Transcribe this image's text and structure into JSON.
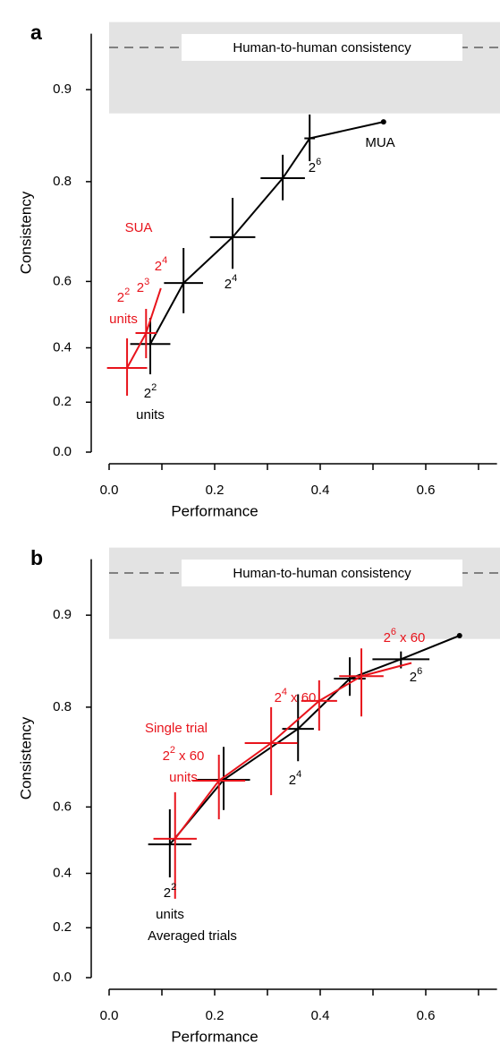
{
  "chart_data": [
    {
      "type": "errorbar",
      "panel": "a",
      "xlabel": "Performance",
      "ylabel": "Consistency",
      "yscale": "atanh",
      "xlim": [
        0,
        0.735
      ],
      "ylim": [
        0,
        0.941
      ],
      "xticks": [
        {
          "value": 0,
          "label": "0.0"
        },
        0.2,
        0.4,
        0.6
      ],
      "yticks": [
        {
          "value": 0,
          "label": "0.0"
        },
        0.2,
        0.4,
        0.6,
        0.8,
        0.9
      ],
      "reference": {
        "label": "Human-to-human consistency",
        "value": 0.928,
        "band": [
          0.88,
          0.941
        ]
      },
      "series": [
        {
          "color": "#000000",
          "end_marker": true,
          "x": [
            0.078,
            0.141,
            0.234,
            0.329,
            0.38,
            0.52
          ],
          "y": [
            0.413,
            0.596,
            0.703,
            0.805,
            0.855,
            0.872
          ],
          "xerr": [
            0.038,
            0.037,
            0.043,
            0.042,
            0.01,
            null
          ],
          "ylow": [
            0.306,
            0.511,
            0.632,
            0.771,
            0.828,
            null
          ],
          "yhigh": [
            0.497,
            0.68,
            0.775,
            0.836,
            0.879,
            null
          ]
        },
        {
          "color": "#e8141c",
          "end_marker": false,
          "x": [
            0.034,
            0.07,
            0.098
          ],
          "y": [
            0.329,
            0.449,
            0.582
          ],
          "xerr": [
            0.038,
            0.02,
            null
          ],
          "ylow": [
            0.225,
            0.364,
            null
          ],
          "yhigh": [
            0.432,
            0.524,
            null
          ]
        }
      ],
      "annotations": [
        {
          "color": "#000000",
          "base": "2",
          "sup": "2",
          "line2": "units"
        },
        {
          "color": "#000000",
          "base": "2",
          "sup": "4"
        },
        {
          "color": "#000000",
          "base": "2",
          "sup": "6"
        },
        {
          "color": "#000000",
          "base": "MUA"
        },
        {
          "color": "#e8141c",
          "base": "SUA"
        },
        {
          "color": "#e8141c",
          "base": "2",
          "sup": "2",
          "line2": "units"
        },
        {
          "color": "#e8141c",
          "base": "2",
          "sup": "3"
        },
        {
          "color": "#e8141c",
          "base": "2",
          "sup": "4"
        }
      ]
    },
    {
      "type": "errorbar",
      "panel": "b",
      "xlabel": "Performance",
      "ylabel": "Consistency",
      "yscale": "atanh",
      "xlim": [
        0,
        0.735
      ],
      "ylim": [
        0,
        0.941
      ],
      "xticks": [
        {
          "value": 0,
          "label": "0.0"
        },
        0.2,
        0.4,
        0.6
      ],
      "yticks": [
        {
          "value": 0,
          "label": "0.0"
        },
        0.2,
        0.4,
        0.6,
        0.8,
        0.9
      ],
      "reference": {
        "label": "Human-to-human consistency",
        "value": 0.928,
        "band": [
          0.88,
          0.941
        ]
      },
      "series": [
        {
          "color": "#000000",
          "end_marker": true,
          "x": [
            0.115,
            0.217,
            0.358,
            0.456,
            0.553,
            0.664
          ],
          "y": [
            0.494,
            0.666,
            0.766,
            0.838,
            0.86,
            0.883
          ],
          "xerr": [
            0.041,
            0.05,
            0.03,
            0.03,
            0.054,
            null
          ],
          "ylow": [
            0.386,
            0.592,
            0.706,
            0.816,
            0.85,
            null
          ],
          "yhigh": [
            0.594,
            0.734,
            0.818,
            0.862,
            0.868,
            null
          ]
        },
        {
          "color": "#e8141c",
          "end_marker": false,
          "x": [
            0.125,
            0.208,
            0.307,
            0.398,
            0.478,
            0.573
          ],
          "y": [
            0.511,
            0.664,
            0.741,
            0.809,
            0.841,
            0.856
          ],
          "xerr": [
            0.041,
            0.05,
            0.05,
            0.034,
            0.042,
            null
          ],
          "ylow": [
            0.31,
            0.567,
            0.63,
            0.763,
            0.786,
            null
          ],
          "yhigh": [
            0.637,
            0.719,
            0.8,
            0.836,
            0.871,
            null
          ]
        }
      ],
      "annotations": [
        {
          "color": "#000000",
          "base": "2",
          "sup": "2",
          "line2": "units"
        },
        {
          "color": "#000000",
          "base": "Averaged trials"
        },
        {
          "color": "#000000",
          "base": "2",
          "sup": "4"
        },
        {
          "color": "#000000",
          "base": "2",
          "sup": "6"
        },
        {
          "color": "#e8141c",
          "base": "Single trial"
        },
        {
          "color": "#e8141c",
          "base": "2",
          "sup": "2",
          "after": "x 60",
          "line2": "units"
        },
        {
          "color": "#e8141c",
          "base": "2",
          "sup": "4",
          "after": "x 60"
        },
        {
          "color": "#e8141c",
          "base": "2",
          "sup": "6",
          "after": "x 60"
        }
      ]
    }
  ]
}
